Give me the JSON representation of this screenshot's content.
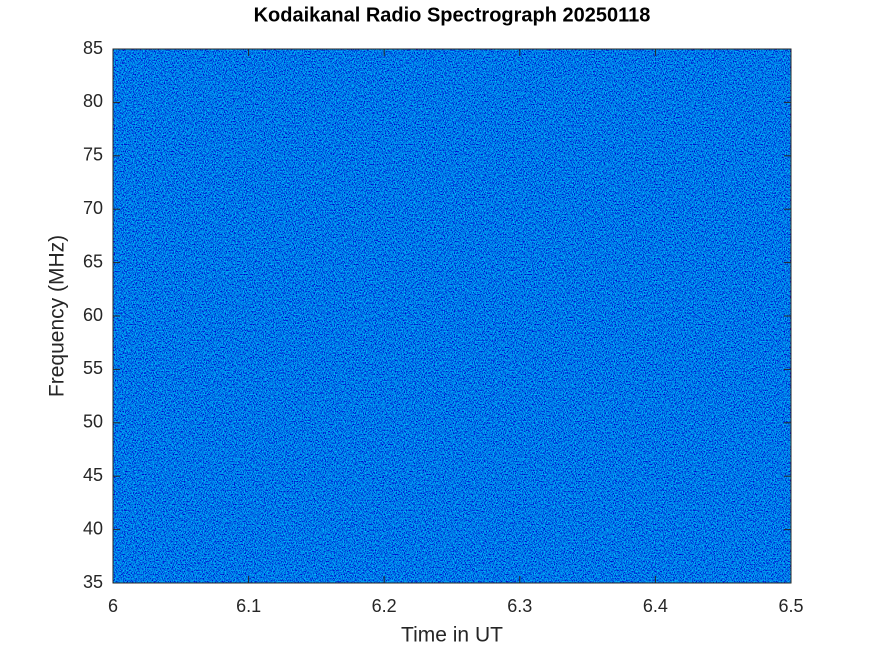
{
  "chart_data": {
    "type": "spectrogram",
    "title": "Kodaikanal Radio Spectrograph  20250118",
    "x_label": "Time in UT",
    "y_label": "Frequency (MHz)",
    "xlim": [
      6,
      6.5
    ],
    "xticks": [
      6,
      6.1,
      6.2,
      6.3,
      6.4,
      6.5
    ],
    "ylim": [
      35,
      85
    ],
    "yticks": [
      35,
      40,
      45,
      50,
      55,
      60,
      65,
      70,
      75,
      80,
      85
    ]
  }
}
